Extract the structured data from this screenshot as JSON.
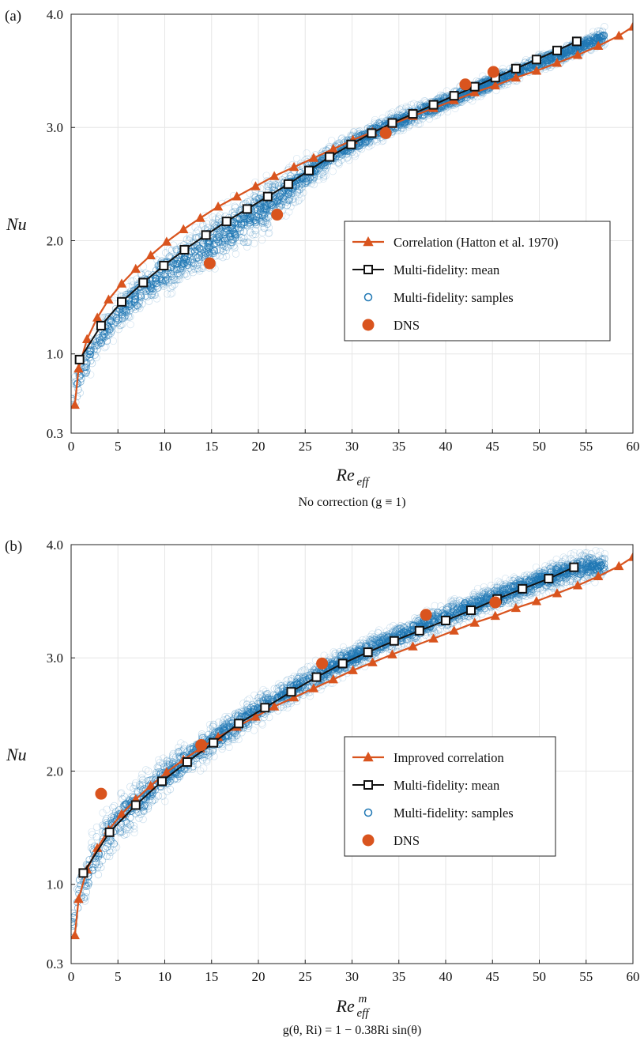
{
  "chart_data": [
    {
      "type": "scatter",
      "panel_label": "(a)",
      "xlabel": "Re_eff",
      "xlabel_main": "Re",
      "xlabel_sub": "eff",
      "xlabel_sup": "",
      "ylabel": "Nu",
      "caption": "No correction (g ≡ 1)",
      "xlim": [
        0,
        60
      ],
      "ylim": [
        0.3,
        4.0
      ],
      "xticks": [
        0,
        5,
        10,
        15,
        20,
        25,
        30,
        35,
        40,
        45,
        50,
        55,
        60
      ],
      "yticks": [
        0.3,
        1.0,
        2.0,
        3.0,
        4.0
      ],
      "ytick_labels": [
        "0.3",
        "1.0",
        "2.0",
        "3.0",
        "4.0"
      ],
      "grid": true,
      "legend_position": "center-right",
      "series": [
        {
          "name": "Correlation (Hatton et al. 1970)",
          "kind": "line-triangle",
          "color": "#d9541e",
          "x": [
            0.4,
            0.8,
            1.7,
            2.8,
            4.0,
            5.4,
            6.9,
            8.5,
            10.2,
            12.0,
            13.8,
            15.7,
            17.7,
            19.7,
            21.7,
            23.8,
            25.9,
            28.0,
            30.1,
            32.2,
            34.3,
            36.5,
            38.7,
            40.9,
            43.1,
            45.3,
            47.5,
            49.7,
            51.9,
            54.1,
            56.3,
            58.5,
            60.0
          ],
          "y": [
            0.55,
            0.87,
            1.13,
            1.32,
            1.48,
            1.62,
            1.75,
            1.87,
            1.99,
            2.1,
            2.2,
            2.3,
            2.39,
            2.48,
            2.57,
            2.65,
            2.73,
            2.81,
            2.89,
            2.96,
            3.03,
            3.1,
            3.17,
            3.24,
            3.31,
            3.37,
            3.44,
            3.5,
            3.57,
            3.64,
            3.72,
            3.81,
            3.89
          ]
        },
        {
          "name": "Multi-fidelity: mean",
          "kind": "line-square",
          "color": "#111111",
          "x": [
            0.9,
            3.2,
            5.4,
            7.7,
            9.9,
            12.1,
            14.4,
            16.6,
            18.8,
            21.0,
            23.2,
            25.4,
            27.6,
            29.9,
            32.1,
            34.3,
            36.5,
            38.7,
            40.9,
            43.1,
            45.3,
            47.5,
            49.7,
            51.9,
            54.0
          ],
          "y": [
            0.95,
            1.25,
            1.46,
            1.63,
            1.78,
            1.92,
            2.05,
            2.17,
            2.28,
            2.39,
            2.5,
            2.62,
            2.74,
            2.85,
            2.95,
            3.04,
            3.12,
            3.2,
            3.28,
            3.36,
            3.44,
            3.52,
            3.6,
            3.68,
            3.76
          ]
        },
        {
          "name": "Multi-fidelity: samples",
          "kind": "band",
          "color": "#1f77b4",
          "x": [
            0,
            1,
            2,
            3,
            5,
            7.5,
            10,
            12.5,
            15,
            17.5,
            20,
            22.5,
            25,
            27.5,
            30,
            32.5,
            35,
            37.5,
            40,
            42.5,
            45,
            47.5,
            50,
            52.5,
            55,
            57
          ],
          "upper": [
            0.72,
            1.0,
            1.16,
            1.3,
            1.52,
            1.74,
            1.93,
            2.09,
            2.24,
            2.38,
            2.51,
            2.63,
            2.75,
            2.86,
            2.96,
            3.06,
            3.15,
            3.23,
            3.31,
            3.4,
            3.48,
            3.56,
            3.64,
            3.72,
            3.81,
            3.9
          ],
          "lower": [
            0.42,
            0.62,
            0.82,
            0.98,
            1.18,
            1.36,
            1.52,
            1.64,
            1.74,
            1.86,
            2.0,
            2.2,
            2.42,
            2.6,
            2.74,
            2.86,
            2.96,
            3.05,
            3.14,
            3.23,
            3.32,
            3.41,
            3.5,
            3.58,
            3.66,
            3.72
          ]
        },
        {
          "name": "DNS",
          "kind": "points",
          "color": "#d9541e",
          "x": [
            14.8,
            22.0,
            33.6,
            42.1,
            45.1
          ],
          "y": [
            1.8,
            2.23,
            2.95,
            3.38,
            3.49
          ]
        }
      ]
    },
    {
      "type": "scatter",
      "panel_label": "(b)",
      "xlabel": "Re^m_eff",
      "xlabel_main": "Re",
      "xlabel_sub": "eff",
      "xlabel_sup": "m",
      "ylabel": "Nu",
      "caption": "g(θ, Ri) = 1 − 0.38Ri sin(θ)",
      "xlim": [
        0,
        60
      ],
      "ylim": [
        0.3,
        4.0
      ],
      "xticks": [
        0,
        5,
        10,
        15,
        20,
        25,
        30,
        35,
        40,
        45,
        50,
        55,
        60
      ],
      "yticks": [
        0.3,
        1.0,
        2.0,
        3.0,
        4.0
      ],
      "ytick_labels": [
        "0.3",
        "1.0",
        "2.0",
        "3.0",
        "4.0"
      ],
      "grid": true,
      "legend_position": "center-right",
      "series": [
        {
          "name": "Improved correlation",
          "kind": "line-triangle",
          "color": "#d9541e",
          "x": [
            0.4,
            0.8,
            1.7,
            2.8,
            4.0,
            5.4,
            6.9,
            8.5,
            10.2,
            12.0,
            13.8,
            15.7,
            17.7,
            19.7,
            21.7,
            23.8,
            25.9,
            28.0,
            30.1,
            32.2,
            34.3,
            36.5,
            38.7,
            40.9,
            43.1,
            45.3,
            47.5,
            49.7,
            51.9,
            54.1,
            56.3,
            58.5,
            60.0
          ],
          "y": [
            0.55,
            0.87,
            1.13,
            1.32,
            1.48,
            1.62,
            1.75,
            1.87,
            1.99,
            2.1,
            2.2,
            2.3,
            2.39,
            2.48,
            2.57,
            2.65,
            2.73,
            2.81,
            2.89,
            2.96,
            3.03,
            3.1,
            3.17,
            3.24,
            3.31,
            3.37,
            3.44,
            3.5,
            3.57,
            3.64,
            3.72,
            3.81,
            3.89
          ]
        },
        {
          "name": "Multi-fidelity: mean",
          "kind": "line-square",
          "color": "#111111",
          "x": [
            1.3,
            4.1,
            6.9,
            9.7,
            12.4,
            15.2,
            17.9,
            20.7,
            23.5,
            26.2,
            29.0,
            31.7,
            34.5,
            37.2,
            40.0,
            42.7,
            45.5,
            48.2,
            51.0,
            53.7
          ],
          "y": [
            1.1,
            1.46,
            1.7,
            1.91,
            2.08,
            2.25,
            2.42,
            2.56,
            2.7,
            2.83,
            2.95,
            3.05,
            3.15,
            3.24,
            3.33,
            3.42,
            3.52,
            3.61,
            3.7,
            3.8
          ]
        },
        {
          "name": "Multi-fidelity: samples",
          "kind": "band",
          "color": "#1f77b4",
          "x": [
            0,
            1,
            2,
            3,
            5,
            7.5,
            10,
            12.5,
            15,
            17.5,
            20,
            22.5,
            25,
            27.5,
            30,
            32.5,
            35,
            37.5,
            40,
            42.5,
            45,
            47.5,
            50,
            52.5,
            55,
            57
          ],
          "upper": [
            0.8,
            1.2,
            1.4,
            1.58,
            1.8,
            1.98,
            2.14,
            2.28,
            2.42,
            2.55,
            2.68,
            2.8,
            2.92,
            3.03,
            3.13,
            3.22,
            3.31,
            3.4,
            3.49,
            3.57,
            3.65,
            3.72,
            3.8,
            3.88,
            3.95,
            3.92
          ],
          "lower": [
            0.42,
            0.68,
            0.88,
            1.04,
            1.3,
            1.54,
            1.75,
            1.93,
            2.1,
            2.26,
            2.4,
            2.53,
            2.65,
            2.77,
            2.88,
            2.98,
            3.07,
            3.16,
            3.24,
            3.32,
            3.4,
            3.48,
            3.56,
            3.62,
            3.66,
            3.7
          ]
        },
        {
          "name": "DNS",
          "kind": "points",
          "color": "#d9541e",
          "x": [
            3.2,
            13.9,
            26.8,
            37.9,
            45.3
          ],
          "y": [
            1.8,
            2.23,
            2.95,
            3.38,
            3.49
          ]
        }
      ]
    }
  ]
}
